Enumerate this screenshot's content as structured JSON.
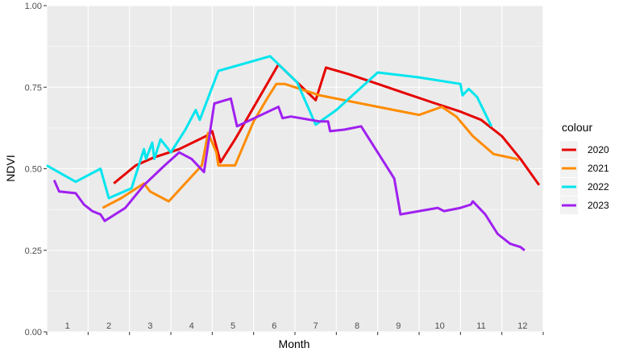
{
  "chart_data": {
    "type": "line",
    "xlabel": "Month",
    "ylabel": "NDVI",
    "xlim": [
      0,
      12
    ],
    "ylim": [
      0,
      1
    ],
    "x_tick_labels": [
      "1",
      "2",
      "3",
      "4",
      "5",
      "6",
      "7",
      "8",
      "9",
      "10",
      "11",
      "12"
    ],
    "y_ticks": [
      0,
      0.25,
      0.5,
      0.75,
      1.0
    ],
    "y_tick_labels": [
      "0.00",
      "0.25",
      "0.50",
      "0.75",
      "1.00"
    ],
    "grid": true,
    "legend": {
      "title": "colour",
      "position": "right"
    },
    "series": [
      {
        "name": "2020",
        "color": "#e60000",
        "points": [
          [
            1.62,
            0.455
          ],
          [
            2.15,
            0.51
          ],
          [
            2.6,
            0.535
          ],
          [
            3.2,
            0.56
          ],
          [
            3.85,
            0.6
          ],
          [
            4.0,
            0.615
          ],
          [
            4.2,
            0.52
          ],
          [
            4.55,
            0.59
          ],
          [
            5.6,
            0.82
          ],
          [
            6.5,
            0.71
          ],
          [
            6.75,
            0.81
          ],
          [
            7.3,
            0.79
          ],
          [
            8.0,
            0.76
          ],
          [
            8.7,
            0.73
          ],
          [
            9.4,
            0.7
          ],
          [
            10.0,
            0.675
          ],
          [
            10.5,
            0.65
          ],
          [
            11.0,
            0.6
          ],
          [
            11.45,
            0.53
          ],
          [
            11.9,
            0.45
          ]
        ]
      },
      {
        "name": "2021",
        "color": "#ff8c00",
        "points": [
          [
            1.35,
            0.38
          ],
          [
            1.8,
            0.41
          ],
          [
            2.35,
            0.455
          ],
          [
            2.5,
            0.43
          ],
          [
            2.95,
            0.4
          ],
          [
            3.6,
            0.49
          ],
          [
            3.75,
            0.51
          ],
          [
            3.9,
            0.61
          ],
          [
            4.1,
            0.55
          ],
          [
            4.15,
            0.51
          ],
          [
            4.55,
            0.51
          ],
          [
            5.0,
            0.645
          ],
          [
            5.35,
            0.72
          ],
          [
            5.55,
            0.76
          ],
          [
            5.75,
            0.76
          ],
          [
            6.6,
            0.725
          ],
          [
            8.0,
            0.69
          ],
          [
            9.0,
            0.665
          ],
          [
            9.55,
            0.69
          ],
          [
            9.9,
            0.66
          ],
          [
            10.3,
            0.6
          ],
          [
            10.8,
            0.545
          ],
          [
            11.35,
            0.53
          ],
          [
            11.4,
            0.525
          ]
        ]
      },
      {
        "name": "2022",
        "color": "#00e5ee",
        "points": [
          [
            0.0,
            0.51
          ],
          [
            0.7,
            0.46
          ],
          [
            1.3,
            0.5
          ],
          [
            1.5,
            0.41
          ],
          [
            2.05,
            0.44
          ],
          [
            2.2,
            0.5
          ],
          [
            2.35,
            0.56
          ],
          [
            2.4,
            0.53
          ],
          [
            2.55,
            0.58
          ],
          [
            2.6,
            0.53
          ],
          [
            2.75,
            0.59
          ],
          [
            3.0,
            0.55
          ],
          [
            3.35,
            0.62
          ],
          [
            3.6,
            0.68
          ],
          [
            3.7,
            0.65
          ],
          [
            4.15,
            0.8
          ],
          [
            5.4,
            0.845
          ],
          [
            6.05,
            0.765
          ],
          [
            6.5,
            0.635
          ],
          [
            7.0,
            0.68
          ],
          [
            8.0,
            0.795
          ],
          [
            9.0,
            0.78
          ],
          [
            9.75,
            0.765
          ],
          [
            10.0,
            0.76
          ],
          [
            10.05,
            0.725
          ],
          [
            10.2,
            0.745
          ],
          [
            10.4,
            0.72
          ],
          [
            10.75,
            0.63
          ]
        ]
      },
      {
        "name": "2023",
        "color": "#a020f0",
        "points": [
          [
            0.18,
            0.465
          ],
          [
            0.3,
            0.43
          ],
          [
            0.7,
            0.425
          ],
          [
            0.9,
            0.39
          ],
          [
            1.1,
            0.37
          ],
          [
            1.3,
            0.36
          ],
          [
            1.4,
            0.34
          ],
          [
            1.9,
            0.38
          ],
          [
            2.35,
            0.45
          ],
          [
            2.85,
            0.51
          ],
          [
            3.2,
            0.55
          ],
          [
            3.5,
            0.53
          ],
          [
            3.8,
            0.49
          ],
          [
            4.05,
            0.7
          ],
          [
            4.45,
            0.715
          ],
          [
            4.6,
            0.63
          ],
          [
            5.6,
            0.69
          ],
          [
            5.7,
            0.655
          ],
          [
            5.9,
            0.66
          ],
          [
            6.6,
            0.645
          ],
          [
            6.8,
            0.645
          ],
          [
            6.85,
            0.615
          ],
          [
            7.2,
            0.62
          ],
          [
            7.6,
            0.63
          ],
          [
            8.4,
            0.47
          ],
          [
            8.55,
            0.36
          ],
          [
            9.0,
            0.37
          ],
          [
            9.45,
            0.38
          ],
          [
            9.6,
            0.37
          ],
          [
            10.0,
            0.38
          ],
          [
            10.25,
            0.39
          ],
          [
            10.3,
            0.4
          ],
          [
            10.6,
            0.36
          ],
          [
            10.9,
            0.3
          ],
          [
            11.2,
            0.27
          ],
          [
            11.45,
            0.26
          ],
          [
            11.55,
            0.25
          ]
        ]
      }
    ]
  }
}
